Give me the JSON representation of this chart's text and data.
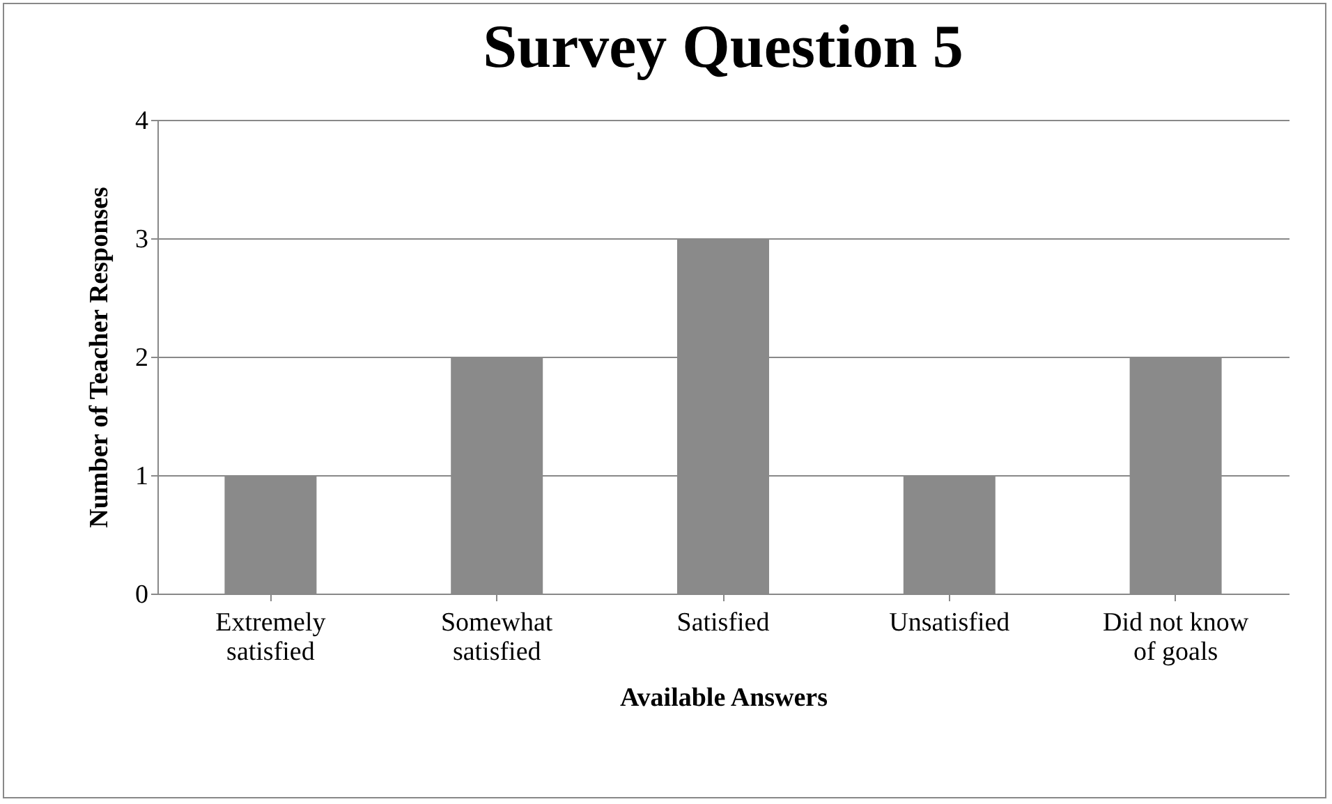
{
  "chart_data": {
    "type": "bar",
    "title": "Survey Question 5",
    "xlabel": "Available Answers",
    "ylabel": "Number of Teacher Responses",
    "categories": [
      "Extremely\nsatisfied",
      "Somewhat\nsatisfied",
      "Satisfied",
      "Unsatisfied",
      "Did not know\nof goals"
    ],
    "values": [
      1,
      2,
      3,
      1,
      2
    ],
    "color": "#8a8a8a",
    "ylim": [
      0,
      4
    ],
    "yticks": [
      0,
      1,
      2,
      3,
      4
    ],
    "grid": "y"
  }
}
